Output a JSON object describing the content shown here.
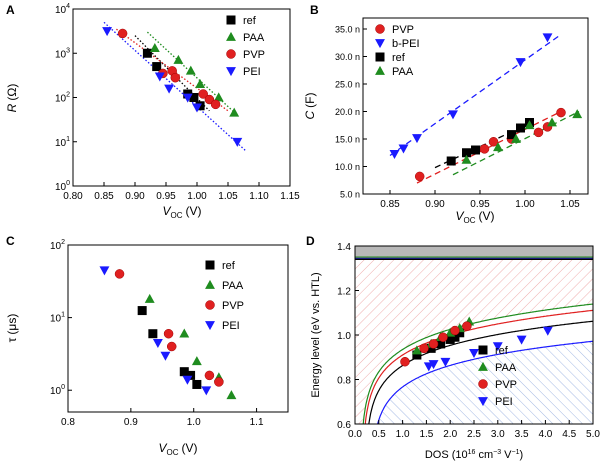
{
  "chart_data": [
    {
      "id": "A",
      "type": "scatter",
      "panel_label": "A",
      "ylabel_main": "R",
      "ylabel_unit": "(Ω)",
      "xlabel_main": "V",
      "xlabel_sub": "OC",
      "xlabel_unit": "(V)",
      "xlim": [
        0.8,
        1.15
      ],
      "ylim_log10": [
        0,
        4
      ],
      "yscale": "log",
      "xticks": [
        "0.80",
        "0.85",
        "0.90",
        "0.95",
        "1.00",
        "1.05",
        "1.10",
        "1.15"
      ],
      "yticks": [
        {
          "base": "10",
          "exp": "0"
        },
        {
          "base": "10",
          "exp": "1"
        },
        {
          "base": "10",
          "exp": "2"
        },
        {
          "base": "10",
          "exp": "3"
        },
        {
          "base": "10",
          "exp": "4"
        }
      ],
      "legend_position": "top-right",
      "series": [
        {
          "name": "ref",
          "marker": "square",
          "color": "#000000",
          "x": [
            0.92,
            0.935,
            0.985,
            0.995,
            1.005
          ],
          "y": [
            1000,
            500,
            120,
            100,
            65
          ]
        },
        {
          "name": "PAA",
          "marker": "triangle-up",
          "color": "#1f8c1f",
          "x": [
            0.932,
            0.97,
            0.99,
            1.005,
            1.035,
            1.06
          ],
          "y": [
            1300,
            700,
            400,
            200,
            100,
            45
          ]
        },
        {
          "name": "PVP",
          "marker": "circle",
          "color": "#e02020",
          "x": [
            0.88,
            0.945,
            0.96,
            0.965,
            1.01,
            1.02,
            1.03
          ],
          "y": [
            2800,
            350,
            400,
            280,
            120,
            90,
            70
          ]
        },
        {
          "name": "PEI",
          "marker": "triangle-down",
          "color": "#1a1aff",
          "x": [
            0.855,
            0.94,
            0.955,
            0.985,
            1.0,
            1.065
          ],
          "y": [
            3200,
            300,
            160,
            100,
            60,
            10
          ]
        }
      ],
      "fits": [
        {
          "color": "#000000",
          "x": [
            0.9,
            1.02
          ],
          "y": [
            2500,
            50
          ]
        },
        {
          "color": "#1f8c1f",
          "x": [
            0.92,
            1.065
          ],
          "y": [
            3000,
            40
          ]
        },
        {
          "color": "#e02020",
          "x": [
            0.87,
            1.05
          ],
          "y": [
            3500,
            50
          ]
        },
        {
          "color": "#1a1aff",
          "x": [
            0.85,
            1.08
          ],
          "y": [
            5000,
            6
          ]
        }
      ]
    },
    {
      "id": "B",
      "type": "scatter",
      "panel_label": "B",
      "ylabel_main": "C",
      "ylabel_unit": "(F)",
      "xlabel_main": "V",
      "xlabel_sub": "OC",
      "xlabel_unit": "(V)",
      "xlim": [
        0.82,
        1.07
      ],
      "ylim": [
        5,
        37
      ],
      "xticks": [
        0.85,
        0.9,
        0.95,
        1.0,
        1.05
      ],
      "xtick_labels": [
        "0.85",
        "0.90",
        "0.95",
        "1.00",
        "1.05"
      ],
      "yticks": [
        5,
        10,
        15,
        20,
        25,
        30,
        35
      ],
      "ytick_labels": [
        "5.0 n",
        "10.0 n",
        "15.0 n",
        "20.0 n",
        "25.0 n",
        "30.0 n",
        "35.0 n"
      ],
      "legend_position": "top-left",
      "series": [
        {
          "name": "PVP",
          "marker": "circle",
          "color": "#e02020",
          "x": [
            0.883,
            0.955,
            0.965,
            0.985,
            1.015,
            1.025,
            1.04
          ],
          "y": [
            8.2,
            13.2,
            14.5,
            15.0,
            16.2,
            17.2,
            19.8
          ]
        },
        {
          "name": "b-PEI",
          "marker": "triangle-down",
          "color": "#1a1aff",
          "x": [
            0.855,
            0.865,
            0.88,
            0.92,
            0.995,
            1.025
          ],
          "y": [
            12.3,
            13.3,
            15.2,
            19.5,
            29.0,
            33.5
          ]
        },
        {
          "name": "ref",
          "marker": "square",
          "color": "#000000",
          "x": [
            0.918,
            0.935,
            0.945,
            0.985,
            0.995,
            1.005
          ],
          "y": [
            11.0,
            12.5,
            13.0,
            15.8,
            17.0,
            18.0
          ]
        },
        {
          "name": "PAA",
          "marker": "triangle-up",
          "color": "#1f8c1f",
          "x": [
            0.935,
            0.97,
            0.99,
            1.005,
            1.03,
            1.058
          ],
          "y": [
            11.2,
            13.5,
            15.0,
            17.5,
            18.0,
            19.5
          ]
        }
      ],
      "fits": [
        {
          "color": "#1a1aff",
          "x": [
            0.85,
            1.04
          ],
          "y": [
            12.0,
            34.0
          ]
        },
        {
          "color": "#000000",
          "x": [
            0.9,
            1.01
          ],
          "y": [
            9.8,
            18.2
          ]
        },
        {
          "color": "#e02020",
          "x": [
            0.88,
            1.04
          ],
          "y": [
            7.0,
            20.0
          ]
        },
        {
          "color": "#1f8c1f",
          "x": [
            0.92,
            1.06
          ],
          "y": [
            8.5,
            20.0
          ]
        }
      ]
    },
    {
      "id": "C",
      "type": "scatter",
      "panel_label": "C",
      "ylabel_main": "τ",
      "ylabel_unit": "(μs)",
      "xlabel_main": "V",
      "xlabel_sub": "OC",
      "xlabel_unit": "(V)",
      "xlim": [
        0.8,
        1.15
      ],
      "ylim_log10": [
        -0.3,
        2
      ],
      "yscale": "log",
      "xticks": [
        0.8,
        0.9,
        1.0,
        1.1
      ],
      "xtick_labels": [
        "0.8",
        "0.9",
        "1.0",
        "1.1"
      ],
      "yticks": [
        {
          "base": "10",
          "exp": "0"
        },
        {
          "base": "10",
          "exp": "1"
        },
        {
          "base": "10",
          "exp": "2"
        }
      ],
      "legend_position": "top-right",
      "series": [
        {
          "name": "ref",
          "marker": "square",
          "color": "#000000",
          "x": [
            0.918,
            0.935,
            0.985,
            0.995,
            1.005
          ],
          "y": [
            12.5,
            6.0,
            1.8,
            1.6,
            1.2
          ]
        },
        {
          "name": "PAA",
          "marker": "triangle-up",
          "color": "#1f8c1f",
          "x": [
            0.93,
            0.985,
            1.005,
            1.04,
            1.06
          ],
          "y": [
            18.0,
            6.0,
            2.5,
            1.5,
            0.85
          ]
        },
        {
          "name": "PVP",
          "marker": "circle",
          "color": "#e02020",
          "x": [
            0.882,
            0.96,
            0.965,
            1.025,
            1.04
          ],
          "y": [
            40.0,
            6.0,
            4.0,
            1.6,
            1.3
          ]
        },
        {
          "name": "PEI",
          "marker": "triangle-down",
          "color": "#1a1aff",
          "x": [
            0.858,
            0.943,
            0.955,
            0.99,
            1.02
          ],
          "y": [
            45.0,
            4.5,
            3.0,
            1.4,
            1.0
          ]
        }
      ]
    },
    {
      "id": "D",
      "type": "scatter",
      "panel_label": "D",
      "ylabel": "Energy level (eV vs. HTL)",
      "xlabel_main": "DOS (10",
      "xlabel_exp1": "16",
      "xlabel_mid": " cm",
      "xlabel_exp2": "−3",
      "xlabel_tail": " V",
      "xlabel_exp3": "−1",
      "xlabel_close": ")",
      "xlim": [
        0,
        5
      ],
      "ylim": [
        0.6,
        1.4
      ],
      "xticks": [
        0,
        0.5,
        1.0,
        1.5,
        2.0,
        2.5,
        3.0,
        3.5,
        4.0,
        4.5,
        5.0
      ],
      "xtick_labels": [
        "0.0",
        "0.5",
        "1.0",
        "1.5",
        "2.0",
        "2.5",
        "3.0",
        "3.5",
        "4.0",
        "4.5",
        "5.0"
      ],
      "yticks": [
        0.6,
        0.8,
        1.0,
        1.2,
        1.4
      ],
      "ytick_labels": [
        "0.6",
        "0.8",
        "1.0",
        "1.2",
        "1.4"
      ],
      "legend_position": "bottom-right",
      "series": [
        {
          "name": "ref",
          "marker": "square",
          "color": "#000000",
          "x": [
            1.3,
            1.6,
            1.8,
            2.0,
            2.1,
            2.2
          ],
          "y": [
            0.91,
            0.94,
            0.96,
            0.98,
            0.99,
            1.01
          ]
        },
        {
          "name": "PAA",
          "marker": "triangle-up",
          "color": "#1f8c1f",
          "x": [
            1.3,
            1.6,
            1.8,
            2.0,
            2.2,
            2.4
          ],
          "y": [
            0.93,
            0.96,
            0.99,
            1.01,
            1.03,
            1.06
          ]
        },
        {
          "name": "PVP",
          "marker": "circle",
          "color": "#e02020",
          "x": [
            1.05,
            1.45,
            1.65,
            1.85,
            2.1,
            2.35
          ],
          "y": [
            0.88,
            0.94,
            0.96,
            0.99,
            1.02,
            1.04
          ]
        },
        {
          "name": "PEI",
          "marker": "triangle-down",
          "color": "#1a1aff",
          "x": [
            1.55,
            1.65,
            1.9,
            2.5,
            3.0,
            3.5,
            4.05
          ],
          "y": [
            0.86,
            0.87,
            0.88,
            0.92,
            0.95,
            0.98,
            1.02
          ]
        }
      ]
    }
  ]
}
